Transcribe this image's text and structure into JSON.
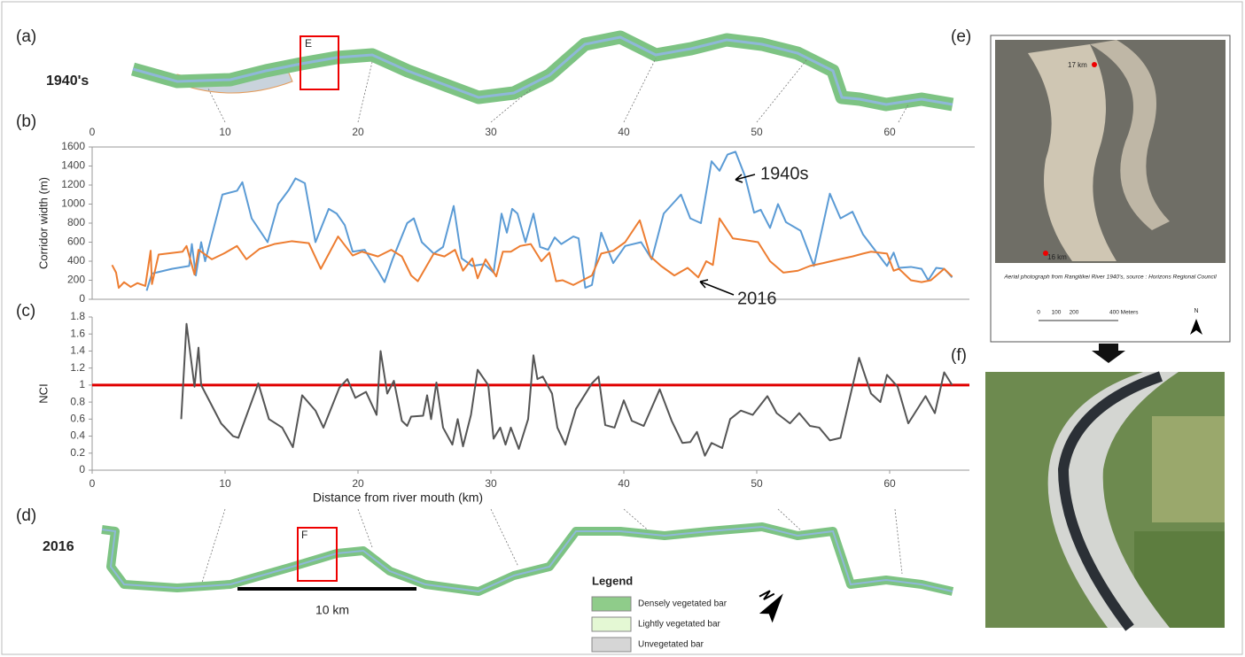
{
  "panels": {
    "a": {
      "label": "(a)",
      "period": "1940's",
      "box": "E",
      "ticks": [
        0,
        10,
        20,
        30,
        40,
        50,
        60
      ]
    },
    "d": {
      "label": "(d)",
      "period": "2016",
      "box": "F",
      "scale": "10 km",
      "legend_title": "Legend",
      "legend": [
        "Densely vegetated bar",
        "Lightly vegetated bar",
        "Unvegetated bar"
      ]
    },
    "e": {
      "label": "(e)",
      "points": [
        "17 km",
        "16 km"
      ],
      "caption": "Aerial photograph from Rangitikei River 1940's, source : Horizons Regional Council",
      "scale_labels": [
        "0",
        "100",
        "200",
        "400 Meters"
      ],
      "north": "N"
    },
    "f": {
      "label": "(f)"
    }
  },
  "chart_data": [
    {
      "type": "line",
      "label": "(b)",
      "ylabel": "Corridor width (m)",
      "xlim": [
        0,
        66
      ],
      "ylim": [
        0,
        1600
      ],
      "yticks": [
        0,
        200,
        400,
        600,
        800,
        1000,
        1200,
        1400,
        1600
      ],
      "series": [
        {
          "name": "1940s",
          "color": "#5b9bd5",
          "x": [
            4.1,
            4.5,
            6,
            7.3,
            7.5,
            7.8,
            8.2,
            8.5,
            9.8,
            10.9,
            11.3,
            12,
            13.2,
            14,
            14.8,
            15.3,
            16,
            16.8,
            17.8,
            18.4,
            19,
            19.6,
            20.5,
            21.5,
            22,
            22.6,
            23.7,
            24.2,
            24.8,
            25.7,
            26.4,
            27.2,
            27.8,
            28.6,
            29.5,
            30.2,
            30.8,
            31.2,
            31.6,
            32,
            32.6,
            33.2,
            33.7,
            34.3,
            34.8,
            35.3,
            36.2,
            36.6,
            37.1,
            37.6,
            38.3,
            39.2,
            40.1,
            41.3,
            42.1,
            43,
            44.3,
            45,
            45.8,
            46.6,
            47.2,
            47.8,
            48.4,
            49.1,
            49.8,
            50.3,
            51,
            51.6,
            52.2,
            53.3,
            54.3,
            55.5,
            56.3,
            57.2,
            58,
            59.8,
            60.3,
            60.7,
            61.6,
            62.4,
            62.9,
            63.5,
            64.1,
            64.7
          ],
          "values": [
            90,
            270,
            320,
            350,
            580,
            250,
            600,
            400,
            1100,
            1140,
            1230,
            850,
            600,
            1000,
            1150,
            1270,
            1220,
            600,
            950,
            900,
            780,
            500,
            520,
            300,
            180,
            420,
            800,
            850,
            600,
            480,
            550,
            980,
            430,
            350,
            370,
            280,
            900,
            700,
            950,
            900,
            600,
            900,
            550,
            520,
            650,
            580,
            660,
            640,
            120,
            150,
            700,
            380,
            560,
            600,
            420,
            900,
            1100,
            850,
            800,
            1450,
            1350,
            1520,
            1550,
            1300,
            910,
            940,
            750,
            1000,
            810,
            720,
            350,
            1110,
            850,
            920,
            680,
            350,
            490,
            330,
            340,
            320,
            200,
            330,
            320,
            230
          ]
        },
        {
          "name": "2016",
          "color": "#ed7d31",
          "x": [
            1.5,
            1.8,
            2,
            2.4,
            2.9,
            3.4,
            4,
            4.4,
            4.5,
            5,
            6.8,
            7.1,
            7.7,
            8,
            9,
            9.9,
            10.9,
            11.6,
            12.6,
            13.7,
            15,
            16.3,
            17.2,
            18.5,
            19.6,
            20.3,
            21.5,
            22.5,
            23.3,
            24,
            24.5,
            25.7,
            26.5,
            27.3,
            27.9,
            28.6,
            29,
            29.6,
            30.4,
            30.9,
            31.5,
            32.2,
            33,
            33.8,
            34.4,
            34.9,
            35.4,
            36.2,
            37.6,
            38.3,
            39.2,
            40.1,
            41.2,
            42,
            42.8,
            43.8,
            44.8,
            45.6,
            46.2,
            46.7,
            47.2,
            48.2,
            49.2,
            50.1,
            51,
            52,
            53.1,
            54,
            55,
            56.2,
            57.2,
            58,
            58.6,
            59.8,
            60.3,
            60.7,
            61.6,
            62.4,
            63.1,
            64.1,
            64.7
          ],
          "values": [
            360,
            280,
            120,
            180,
            130,
            170,
            140,
            510,
            160,
            470,
            500,
            560,
            260,
            520,
            420,
            480,
            560,
            420,
            530,
            580,
            610,
            590,
            320,
            660,
            460,
            500,
            450,
            520,
            450,
            250,
            190,
            480,
            450,
            520,
            300,
            430,
            220,
            420,
            240,
            500,
            500,
            560,
            580,
            400,
            490,
            190,
            200,
            150,
            250,
            480,
            510,
            600,
            830,
            450,
            350,
            250,
            330,
            230,
            400,
            360,
            850,
            640,
            620,
            600,
            400,
            280,
            300,
            350,
            380,
            420,
            450,
            480,
            500,
            480,
            300,
            320,
            200,
            180,
            200,
            320,
            240
          ]
        }
      ]
    },
    {
      "type": "line",
      "label": "(c)",
      "ylabel": "NCI",
      "xlabel": "Distance from river mouth (km)",
      "xlim": [
        0,
        66
      ],
      "xticks": [
        0,
        10,
        20,
        30,
        40,
        50,
        60
      ],
      "ylim": [
        0,
        1.8
      ],
      "yticks": [
        0,
        0.2,
        0.4,
        0.6,
        0.8,
        1,
        1.2,
        1.4,
        1.6,
        1.8
      ],
      "reference_line": 1,
      "reference_color": "#e00000",
      "series": [
        {
          "color": "#555555",
          "x": [
            6.7,
            7.1,
            7.7,
            8,
            8.2,
            9.7,
            10.6,
            11,
            12.5,
            13.3,
            14.3,
            15.1,
            15.8,
            16.8,
            17.4,
            18.6,
            19.2,
            19.8,
            20.6,
            21.4,
            21.7,
            22.2,
            22.7,
            23.3,
            23.7,
            24,
            24.9,
            25.2,
            25.5,
            25.9,
            26.4,
            27.1,
            27.5,
            27.9,
            28.5,
            29,
            29.8,
            30.2,
            30.7,
            31.1,
            31.5,
            32.1,
            32.8,
            33.2,
            33.5,
            33.9,
            34.6,
            35,
            35.6,
            36.4,
            37.6,
            38.1,
            38.6,
            39.3,
            40,
            40.6,
            41.5,
            42.7,
            43.6,
            44.4,
            45,
            45.5,
            46.1,
            46.6,
            47.4,
            48,
            48.8,
            49.7,
            50.8,
            51.5,
            52.5,
            53.2,
            54,
            54.7,
            55.5,
            56.3,
            57.7,
            58.6,
            59.3,
            59.8,
            60.6,
            61.4,
            62.7,
            63.4,
            64.1,
            64.7
          ],
          "values": [
            0.6,
            1.72,
            0.98,
            1.44,
            1.0,
            0.55,
            0.4,
            0.38,
            1.02,
            0.6,
            0.5,
            0.27,
            0.88,
            0.7,
            0.5,
            0.97,
            1.07,
            0.85,
            0.92,
            0.65,
            1.4,
            0.9,
            1.05,
            0.58,
            0.52,
            0.63,
            0.64,
            0.88,
            0.6,
            1.03,
            0.5,
            0.3,
            0.6,
            0.28,
            0.65,
            1.18,
            1.0,
            0.37,
            0.5,
            0.3,
            0.5,
            0.25,
            0.6,
            1.35,
            1.07,
            1.1,
            0.9,
            0.5,
            0.3,
            0.72,
            1.02,
            1.1,
            0.53,
            0.5,
            0.82,
            0.58,
            0.52,
            0.95,
            0.58,
            0.32,
            0.33,
            0.45,
            0.17,
            0.32,
            0.26,
            0.6,
            0.7,
            0.65,
            0.87,
            0.67,
            0.55,
            0.67,
            0.52,
            0.5,
            0.35,
            0.38,
            1.32,
            0.9,
            0.8,
            1.12,
            0.98,
            0.55,
            0.87,
            0.67,
            1.15,
            1.0
          ]
        }
      ]
    }
  ]
}
